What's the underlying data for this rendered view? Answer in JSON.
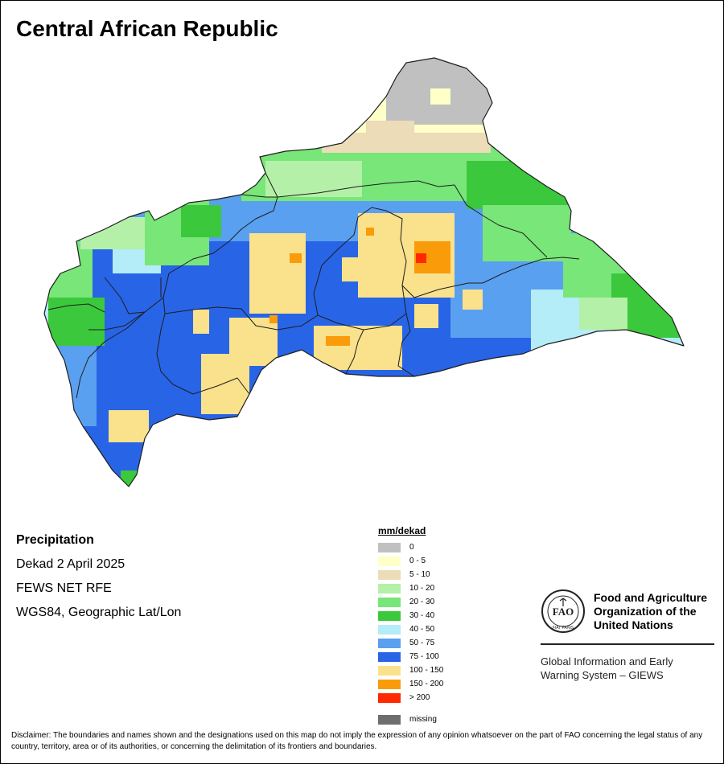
{
  "title": "Central African Republic",
  "info": {
    "variable": "Precipitation",
    "period": "Dekad 2 April 2025",
    "source": "FEWS NET RFE",
    "projection": "WGS84, Geographic Lat/Lon"
  },
  "legend": {
    "unit": "mm/dekad",
    "classes": [
      {
        "label": "0",
        "color": "#c0c0c0"
      },
      {
        "label": "0 - 5",
        "color": "#ffffc8"
      },
      {
        "label": "5 - 10",
        "color": "#ecdcb8"
      },
      {
        "label": "10 - 20",
        "color": "#b4f0a8"
      },
      {
        "label": "20 - 30",
        "color": "#78e678"
      },
      {
        "label": "30 - 40",
        "color": "#3cc83c"
      },
      {
        "label": "40 - 50",
        "color": "#b4ecf8"
      },
      {
        "label": "50 - 75",
        "color": "#5aa0f0"
      },
      {
        "label": "75 - 100",
        "color": "#2864e6"
      },
      {
        "label": "100 - 150",
        "color": "#fae18c"
      },
      {
        "label": "150 - 200",
        "color": "#fa9b0a"
      },
      {
        "label": "> 200",
        "color": "#ff2800"
      }
    ],
    "missing": {
      "label": "missing",
      "color": "#6e6e6e"
    }
  },
  "fao": {
    "logo_text": "FAO",
    "logo_motto": "FIAT PANIS",
    "org_line1": "Food and Agriculture",
    "org_line2": "Organization of the",
    "org_line3": "United Nations",
    "giews_line1": "Global Information and Early",
    "giews_line2": "Warning System – GIEWS"
  },
  "disclaimer": "Disclaimer: The boundaries and names shown and the designations used on this map do not imply the expression of any opinion whatsoever on the part of FAO concerning the legal status of any country, territory, area or of its authorities, or concerning the delimitation of its frontiers and boundaries."
}
